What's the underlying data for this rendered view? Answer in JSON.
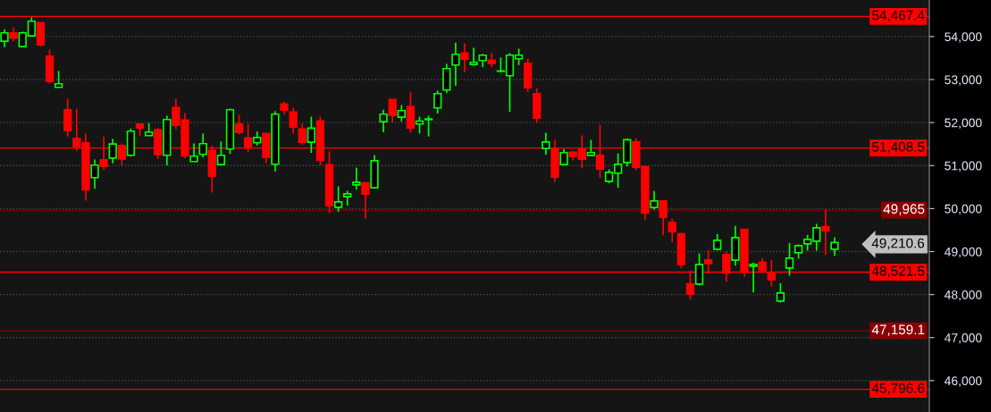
{
  "chart_data": {
    "type": "candlestick",
    "categories": [
      null,
      null,
      null,
      null,
      null,
      null,
      null,
      null,
      null,
      null,
      null,
      null,
      null,
      null,
      null,
      null,
      null,
      null,
      null,
      null,
      null,
      null,
      null,
      null,
      null,
      null,
      null,
      null,
      null,
      null,
      null,
      null,
      null,
      null,
      null,
      null,
      null,
      null,
      null,
      null,
      null,
      null,
      null,
      null,
      null,
      null,
      null,
      null,
      null,
      null,
      null,
      null,
      null,
      null,
      null,
      null,
      null,
      null,
      null,
      null,
      null,
      null,
      null,
      null,
      null,
      null,
      null,
      null,
      null,
      null,
      null,
      null,
      null,
      null,
      null,
      null,
      null,
      null,
      null,
      null,
      null,
      null,
      null,
      null,
      null,
      null,
      null,
      null,
      null,
      null,
      null,
      null,
      null,
      null,
      null,
      null,
      null,
      null,
      null,
      null,
      null,
      null,
      null
    ],
    "ohlc": [
      [
        53893,
        54170,
        53754,
        54087
      ],
      [
        54087,
        54218,
        53893,
        53962
      ],
      [
        53768,
        54114,
        53768,
        54087
      ],
      [
        54017,
        54447,
        53997,
        54357
      ],
      [
        54322,
        54322,
        53768,
        53810
      ],
      [
        53546,
        53699,
        52909,
        52957
      ],
      [
        52819,
        53200,
        52819,
        52902
      ],
      [
        52299,
        52555,
        51675,
        51814
      ],
      [
        51634,
        52320,
        51342,
        51446
      ],
      [
        51530,
        51744,
        50185,
        50442
      ],
      [
        50719,
        51141,
        50462,
        51010
      ],
      [
        51135,
        51675,
        50899,
        50982
      ],
      [
        51176,
        51620,
        51051,
        51502
      ],
      [
        51467,
        51516,
        51003,
        51155
      ],
      [
        51239,
        51862,
        51211,
        51800
      ],
      [
        51966,
        51966,
        51689,
        51876
      ],
      [
        51696,
        51987,
        51696,
        51779
      ],
      [
        51828,
        51883,
        51155,
        51259
      ],
      [
        51239,
        52160,
        51003,
        52070
      ],
      [
        52348,
        52555,
        51849,
        51939
      ],
      [
        52056,
        52223,
        51170,
        51225
      ],
      [
        51093,
        51516,
        51093,
        51218
      ],
      [
        51260,
        51745,
        51190,
        51509
      ],
      [
        51350,
        51467,
        50372,
        50754
      ],
      [
        51024,
        51558,
        51003,
        51239
      ],
      [
        51384,
        52327,
        51273,
        52299
      ],
      [
        51966,
        52181,
        51724,
        51772
      ],
      [
        51641,
        51973,
        51308,
        51440
      ],
      [
        51530,
        51793,
        51467,
        51654
      ],
      [
        51745,
        51745,
        51058,
        51190
      ],
      [
        51031,
        52264,
        50858,
        52195
      ],
      [
        52431,
        52479,
        52188,
        52292
      ],
      [
        52244,
        52348,
        51745,
        51897
      ],
      [
        51849,
        51973,
        51481,
        51544
      ],
      [
        51544,
        52140,
        51294,
        51870
      ],
      [
        52036,
        52140,
        51003,
        51128
      ],
      [
        51017,
        51329,
        49901,
        50068
      ],
      [
        50032,
        50518,
        49922,
        50157
      ],
      [
        50275,
        50414,
        50067,
        50344
      ],
      [
        50552,
        50954,
        50441,
        50615
      ],
      [
        50601,
        50601,
        49769,
        50337
      ],
      [
        50483,
        51245,
        50483,
        51113
      ],
      [
        52021,
        52299,
        51772,
        52195
      ],
      [
        52534,
        52534,
        52001,
        52167
      ],
      [
        52125,
        52409,
        52021,
        52278
      ],
      [
        52368,
        52721,
        51765,
        51876
      ],
      [
        51966,
        52139,
        51744,
        52035
      ],
      [
        52070,
        52160,
        51675,
        52084
      ],
      [
        52340,
        52742,
        52208,
        52673
      ],
      [
        52756,
        53366,
        52687,
        53255
      ],
      [
        53338,
        53858,
        52853,
        53588
      ],
      [
        53615,
        53844,
        53165,
        53477
      ],
      [
        53352,
        53740,
        53317,
        53400
      ],
      [
        53442,
        53595,
        53290,
        53567
      ],
      [
        53449,
        53615,
        53290,
        53373
      ],
      [
        53193,
        53511,
        53165,
        53200
      ],
      [
        53089,
        53615,
        52250,
        53567
      ],
      [
        53484,
        53719,
        53338,
        53567
      ],
      [
        53380,
        53491,
        52714,
        52811
      ],
      [
        52673,
        52797,
        52001,
        52104
      ],
      [
        51398,
        51765,
        51252,
        51550
      ],
      [
        51384,
        51599,
        50615,
        50732
      ],
      [
        51023,
        51384,
        51023,
        51301
      ],
      [
        51308,
        51342,
        51121,
        51211
      ],
      [
        51377,
        51703,
        50940,
        51148
      ],
      [
        51238,
        51599,
        51238,
        51301
      ],
      [
        51245,
        51952,
        50712,
        50919
      ],
      [
        50635,
        50912,
        50587,
        50843
      ],
      [
        50823,
        51287,
        50483,
        51030
      ],
      [
        51072,
        51633,
        50982,
        51599
      ],
      [
        51557,
        51633,
        50899,
        50961
      ],
      [
        50975,
        50975,
        49734,
        49894
      ],
      [
        50026,
        50407,
        49977,
        50178
      ],
      [
        50178,
        50199,
        49381,
        49797
      ],
      [
        49679,
        49762,
        49215,
        49464
      ],
      [
        49416,
        49437,
        48612,
        48695
      ],
      [
        48252,
        48557,
        47884,
        48009
      ],
      [
        48245,
        48958,
        48210,
        48702
      ],
      [
        48806,
        49042,
        48487,
        48723
      ],
      [
        49055,
        49409,
        49028,
        49263
      ],
      [
        48931,
        48993,
        48300,
        48501
      ],
      [
        48799,
        49596,
        48674,
        49326
      ],
      [
        49520,
        49520,
        48418,
        48522
      ],
      [
        48660,
        48744,
        48051,
        48702
      ],
      [
        48751,
        48848,
        48501,
        48557
      ],
      [
        48515,
        48806,
        48190,
        48349
      ],
      [
        47850,
        48266,
        47815,
        48037
      ],
      [
        48619,
        49201,
        48439,
        48848
      ],
      [
        48972,
        49166,
        48834,
        49139
      ],
      [
        49180,
        49388,
        49021,
        49284
      ],
      [
        49243,
        49645,
        49021,
        49554
      ],
      [
        49582,
        49970,
        48924,
        49485
      ],
      [
        49055,
        49333,
        48903,
        49210
      ],
      null,
      null,
      null,
      null,
      null,
      null,
      null,
      null,
      null,
      null
    ],
    "colors": [
      "#00ff00",
      "#ff0000",
      "#00ff00",
      "#00ff00",
      "#ff0000",
      "#ff0000",
      "#00ff00",
      "#ff0000",
      "#ff0000",
      "#ff0000",
      "#00ff00",
      "#ff0000",
      "#00ff00",
      "#ff0000",
      "#00ff00",
      "#ff0000",
      "#00ff00",
      "#ff0000",
      "#00ff00",
      "#ff0000",
      "#ff0000",
      "#00ff00",
      "#00ff00",
      "#ff0000",
      "#00ff00",
      "#00ff00",
      "#ff0000",
      "#ff0000",
      "#00ff00",
      "#ff0000",
      "#00ff00",
      "#ff0000",
      "#ff0000",
      "#ff0000",
      "#00ff00",
      "#ff0000",
      "#ff0000",
      "#00ff00",
      "#00ff00",
      "#00ff00",
      "#ff0000",
      "#00ff00",
      "#00ff00",
      "#ff0000",
      "#00ff00",
      "#ff0000",
      "#00ff00",
      "#00ff00",
      "#00ff00",
      "#00ff00",
      "#00ff00",
      "#ff0000",
      "#00ff00",
      "#00ff00",
      "#ff0000",
      "#00ff00",
      "#00ff00",
      "#00ff00",
      "#ff0000",
      "#ff0000",
      "#00ff00",
      "#ff0000",
      "#00ff00",
      "#ff0000",
      "#ff0000",
      "#00ff00",
      "#ff0000",
      "#00ff00",
      "#00ff00",
      "#00ff00",
      "#ff0000",
      "#ff0000",
      "#00ff00",
      "#ff0000",
      "#ff0000",
      "#ff0000",
      "#ff0000",
      "#00ff00",
      "#ff0000",
      "#00ff00",
      "#ff0000",
      "#00ff00",
      "#ff0000",
      "#00ff00",
      "#ff0000",
      "#ff0000",
      "#00ff00",
      "#00ff00",
      "#00ff00",
      "#00ff00",
      "#00ff00",
      "#ff0000",
      "#00ff00",
      null,
      null,
      null,
      null,
      null,
      null,
      null,
      null,
      null,
      null
    ],
    "ylim": [
      45270,
      54850
    ],
    "yticks": [
      {
        "value": 46000,
        "label": "46,000"
      },
      {
        "value": 47000,
        "label": "47,000"
      },
      {
        "value": 48000,
        "label": "48,000"
      },
      {
        "value": 49000,
        "label": "49,000"
      },
      {
        "value": 50000,
        "label": "50,000"
      },
      {
        "value": 51000,
        "label": "51,000"
      },
      {
        "value": 52000,
        "label": "52,000"
      },
      {
        "value": 53000,
        "label": "53,000"
      },
      {
        "value": 54000,
        "label": "54,000"
      }
    ],
    "grid": "y",
    "ref_lines": [
      {
        "axis": "y",
        "value": 54467.4,
        "label": "54,467.4",
        "color": "#ff0000"
      },
      {
        "axis": "y",
        "value": 51408.5,
        "label": "51,408.5",
        "color": "#ff0000"
      },
      {
        "axis": "y",
        "value": 49965,
        "label": "49,965",
        "color": "#8b0000"
      },
      {
        "axis": "y",
        "value": 48521.5,
        "label": "48,521.5",
        "color": "#ff0000"
      },
      {
        "axis": "y",
        "value": 47159.1,
        "label": "47,159.1",
        "color": "#8b0000"
      },
      {
        "axis": "y",
        "value": 45796.6,
        "label": "45,796.6",
        "color": "#ff0000"
      }
    ],
    "annotations": [
      "49,210.6"
    ]
  }
}
